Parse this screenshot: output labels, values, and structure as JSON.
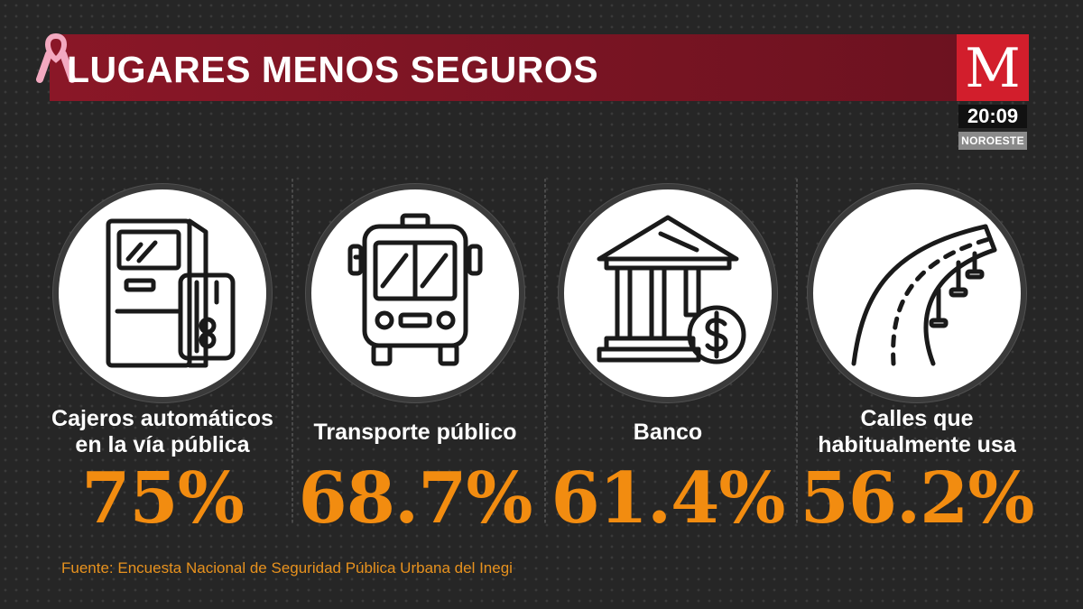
{
  "header": {
    "title": "LUGARES MENOS SEGUROS",
    "ribbon_color": "#f3a9c0"
  },
  "brand": {
    "logo_letter": "M",
    "logo_color": "#d21e2c",
    "time": "20:09",
    "region": "NOROESTE"
  },
  "items": [
    {
      "label": "Cajeros automáticos en la vía pública",
      "value": "75%",
      "icon": "atm-icon"
    },
    {
      "label": "Transporte público",
      "value": "68.7%",
      "icon": "bus-icon"
    },
    {
      "label": "Banco",
      "value": "61.4%",
      "icon": "bank-icon"
    },
    {
      "label": "Calles que habitualmente usa",
      "value": "56.2%",
      "icon": "road-icon"
    }
  ],
  "accent_color": "#f28c10",
  "footer": {
    "source": "Fuente: Encuesta Nacional de Seguridad Pública Urbana del Inegi"
  }
}
